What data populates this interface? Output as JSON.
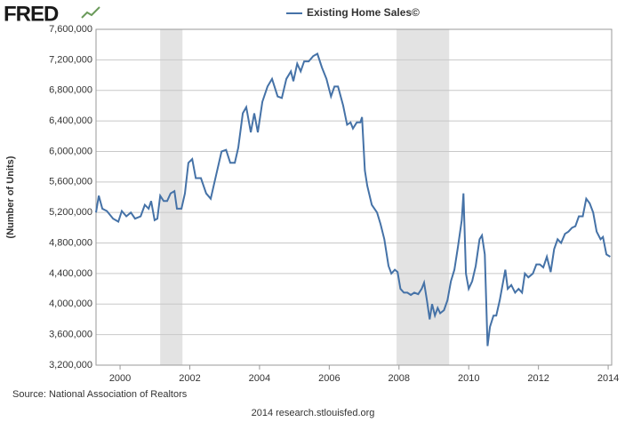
{
  "brand": "FRED",
  "chart_data": {
    "type": "line",
    "y_label": "(Number of Units)",
    "source": "Source: National Association of Realtors",
    "footer": "2014 research.stlouisfed.org",
    "x": [
      1999.31,
      1999.39,
      1999.49,
      1999.62,
      1999.8,
      1999.95,
      2000.05,
      2000.18,
      2000.31,
      2000.43,
      2000.59,
      2000.71,
      2000.82,
      2000.89,
      2000.99,
      2001.07,
      2001.15,
      2001.25,
      2001.35,
      2001.45,
      2001.56,
      2001.63,
      2001.76,
      2001.86,
      2001.96,
      2002.07,
      2002.17,
      2002.32,
      2002.47,
      2002.6,
      2002.76,
      2002.91,
      2003.04,
      2003.16,
      2003.29,
      2003.39,
      2003.52,
      2003.62,
      2003.75,
      2003.85,
      2003.95,
      2004.08,
      2004.23,
      2004.36,
      2004.52,
      2004.64,
      2004.77,
      2004.9,
      2004.97,
      2005.08,
      2005.18,
      2005.28,
      2005.41,
      2005.54,
      2005.66,
      2005.79,
      2005.92,
      2006.05,
      2006.15,
      2006.25,
      2006.4,
      2006.51,
      2006.61,
      2006.68,
      2006.79,
      2006.89,
      2006.94,
      2007.02,
      2007.09,
      2007.22,
      2007.37,
      2007.47,
      2007.58,
      2007.7,
      2007.78,
      2007.88,
      2007.96,
      2008.04,
      2008.14,
      2008.24,
      2008.34,
      2008.44,
      2008.55,
      2008.65,
      2008.72,
      2008.8,
      2008.88,
      2008.95,
      2009.03,
      2009.11,
      2009.18,
      2009.29,
      2009.39,
      2009.49,
      2009.59,
      2009.69,
      2009.8,
      2009.85,
      2009.92,
      2010.0,
      2010.1,
      2010.2,
      2010.31,
      2010.38,
      2010.46,
      2010.54,
      2010.61,
      2010.71,
      2010.79,
      2010.89,
      2011.05,
      2011.12,
      2011.22,
      2011.33,
      2011.43,
      2011.53,
      2011.61,
      2011.71,
      2011.84,
      2011.94,
      2012.04,
      2012.14,
      2012.24,
      2012.35,
      2012.45,
      2012.55,
      2012.65,
      2012.76,
      2012.86,
      2012.96,
      2013.06,
      2013.16,
      2013.27,
      2013.37,
      2013.47,
      2013.57,
      2013.67,
      2013.78,
      2013.85,
      2013.95,
      2014.06
    ],
    "series": [
      {
        "name": "Existing Home Sales©",
        "color": "#4572a7",
        "values": [
          5200000,
          5420000,
          5250000,
          5220000,
          5120000,
          5080000,
          5220000,
          5150000,
          5200000,
          5120000,
          5150000,
          5300000,
          5250000,
          5350000,
          5100000,
          5120000,
          5420000,
          5350000,
          5350000,
          5450000,
          5480000,
          5250000,
          5250000,
          5450000,
          5850000,
          5900000,
          5650000,
          5650000,
          5450000,
          5380000,
          5700000,
          6000000,
          6020000,
          5850000,
          5850000,
          6050000,
          6500000,
          6580000,
          6250000,
          6500000,
          6250000,
          6650000,
          6850000,
          6950000,
          6720000,
          6700000,
          6950000,
          7050000,
          6920000,
          7150000,
          7050000,
          7180000,
          7180000,
          7250000,
          7280000,
          7100000,
          6950000,
          6720000,
          6850000,
          6850000,
          6600000,
          6350000,
          6380000,
          6300000,
          6380000,
          6380000,
          6450000,
          5750000,
          5550000,
          5300000,
          5200000,
          5050000,
          4850000,
          4500000,
          4400000,
          4450000,
          4420000,
          4200000,
          4150000,
          4150000,
          4120000,
          4150000,
          4130000,
          4200000,
          4280000,
          4050000,
          3800000,
          4000000,
          3850000,
          3950000,
          3880000,
          3920000,
          4050000,
          4300000,
          4450000,
          4750000,
          5100000,
          5450000,
          4400000,
          4200000,
          4300000,
          4500000,
          4850000,
          4900000,
          4650000,
          3450000,
          3700000,
          3850000,
          3850000,
          4050000,
          4450000,
          4200000,
          4250000,
          4150000,
          4200000,
          4150000,
          4400000,
          4350000,
          4400000,
          4520000,
          4520000,
          4480000,
          4620000,
          4420000,
          4720000,
          4850000,
          4800000,
          4920000,
          4950000,
          5000000,
          5020000,
          5150000,
          5150000,
          5380000,
          5320000,
          5200000,
          4950000,
          4850000,
          4880000,
          4650000,
          4620000
        ]
      }
    ],
    "shaded_regions": [
      [
        2001.15,
        2001.79
      ],
      [
        2007.93,
        2009.44
      ]
    ],
    "shade_color": "#e3e3e3",
    "xlim": [
      1999.31,
      2014.1
    ],
    "xticks": [
      2000,
      2002,
      2004,
      2006,
      2008,
      2010,
      2012,
      2014
    ],
    "ylim": [
      3200000,
      7600000
    ],
    "yticks": [
      {
        "value": 3200000,
        "label": "3,200,000"
      },
      {
        "value": 3600000,
        "label": "3,600,000"
      },
      {
        "value": 4000000,
        "label": "4,000,000"
      },
      {
        "value": 4400000,
        "label": "4,400,000"
      },
      {
        "value": 4800000,
        "label": "4,800,000"
      },
      {
        "value": 5200000,
        "label": "5,200,000"
      },
      {
        "value": 5600000,
        "label": "5,600,000"
      },
      {
        "value": 6000000,
        "label": "6,000,000"
      },
      {
        "value": 6400000,
        "label": "6,400,000"
      },
      {
        "value": 6800000,
        "label": "6,800,000"
      },
      {
        "value": 7200000,
        "label": "7,200,000"
      },
      {
        "value": 7600000,
        "label": "7,600,000"
      }
    ],
    "grid": true,
    "legend": "top"
  }
}
